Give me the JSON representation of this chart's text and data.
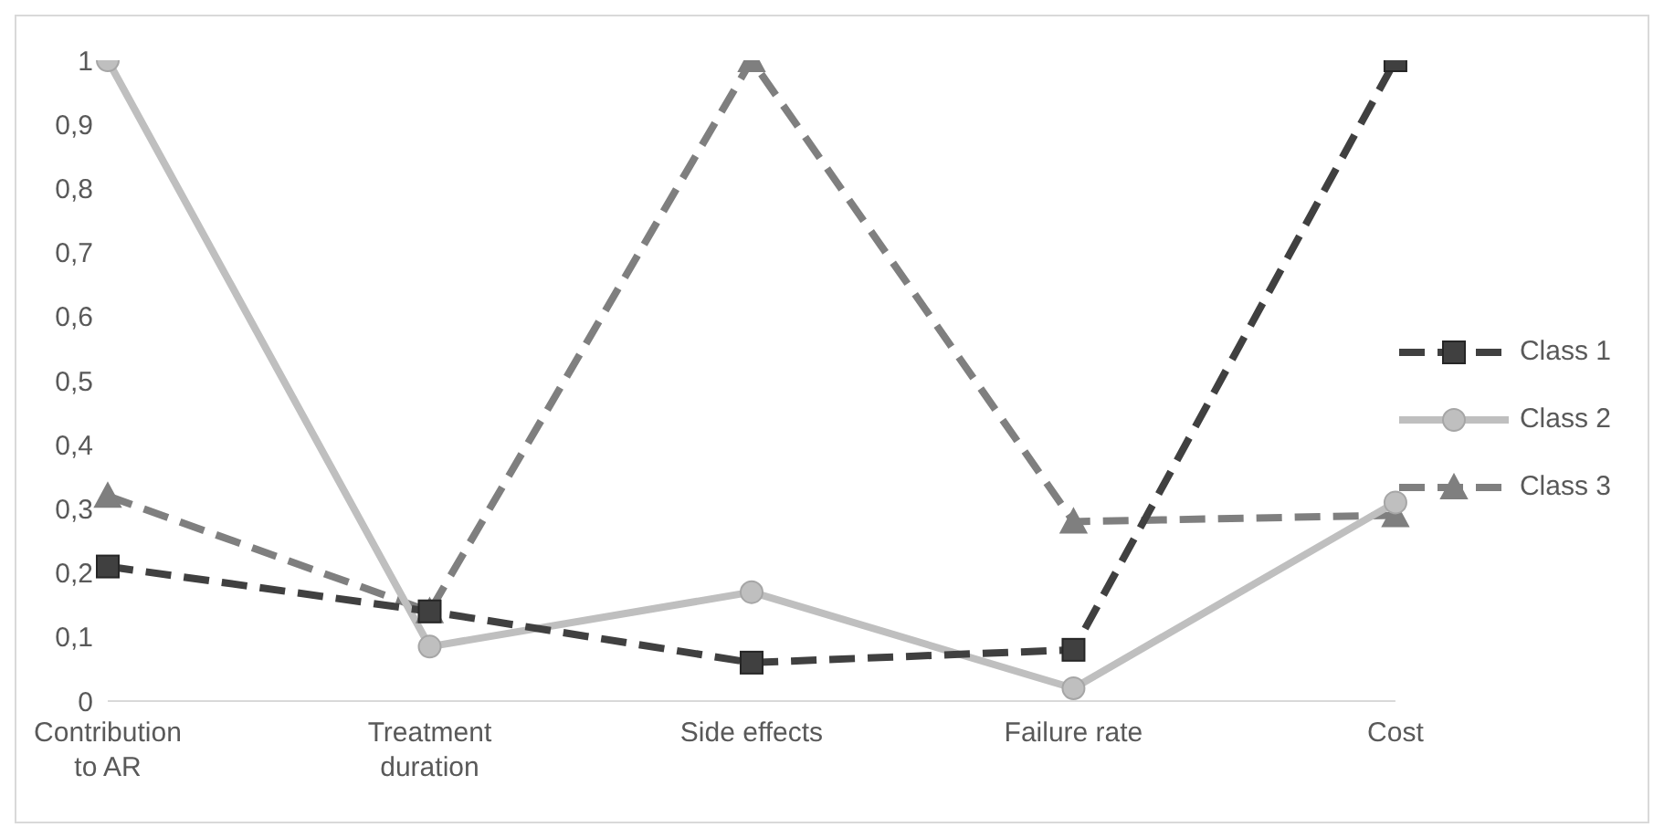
{
  "chart_data": {
    "type": "line",
    "categories": [
      "Contribution to AR",
      "Treatment duration",
      "Side effects",
      "Failure rate",
      "Cost"
    ],
    "series": [
      {
        "name": "Class 1",
        "color": "#404040",
        "values": [
          0.21,
          0.14,
          0.06,
          0.08,
          1
        ],
        "marker": "square",
        "line_style": "dashed"
      },
      {
        "name": "Class 2",
        "color": "#bfbfbf",
        "values": [
          1,
          0.085,
          0.17,
          0.02,
          0.31
        ],
        "marker": "circle",
        "line_style": "solid"
      },
      {
        "name": "Class 3",
        "color": "#7f7f7f",
        "values": [
          0.32,
          0.14,
          1,
          0.28,
          0.29
        ],
        "marker": "triangle",
        "line_style": "dashed"
      }
    ],
    "ylim": [
      0,
      1
    ],
    "yticks": [
      {
        "value": 0,
        "label": "0"
      },
      {
        "value": 0.1,
        "label": "0,1"
      },
      {
        "value": 0.2,
        "label": "0,2"
      },
      {
        "value": 0.3,
        "label": "0,3"
      },
      {
        "value": 0.4,
        "label": "0,4"
      },
      {
        "value": 0.5,
        "label": "0,5"
      },
      {
        "value": 0.6,
        "label": "0,6"
      },
      {
        "value": 0.7,
        "label": "0,7"
      },
      {
        "value": 0.8,
        "label": "0,8"
      },
      {
        "value": 0.9,
        "label": "0,9"
      },
      {
        "value": 1,
        "label": "1"
      }
    ],
    "grid": false,
    "legend": "right"
  }
}
